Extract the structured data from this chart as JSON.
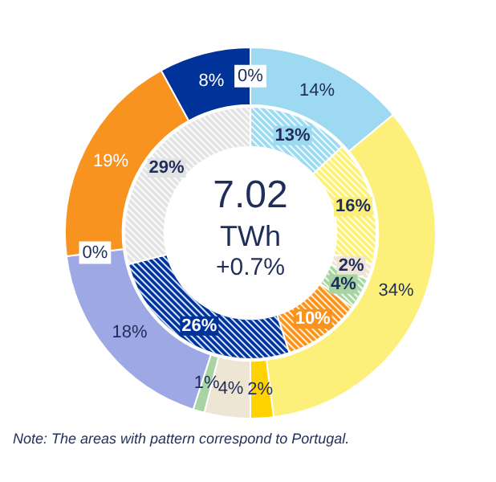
{
  "chart_data": [
    {
      "type": "donut",
      "categories": [
        null,
        null,
        null,
        null,
        null,
        null,
        null,
        null,
        null,
        null
      ],
      "values": [
        0,
        14,
        34,
        2,
        4,
        1,
        18,
        0,
        19,
        8
      ],
      "colors": [
        "#d9d9d9",
        "#9dd9f0",
        "#fdf07a",
        "#ffd200",
        "#efe5d5",
        "#a8d4a4",
        "#9ea8e4",
        "#9ea8e4",
        "#f7931e",
        "#003399"
      ],
      "value_labels": [
        "0%",
        "14%",
        "34%",
        "2%",
        "4%",
        "1%",
        "18%",
        "0%",
        "19%",
        "8%"
      ],
      "legend": false,
      "annotations": [
        "Note: The areas with pattern correspond to Portugal."
      ]
    },
    {
      "type": "donut",
      "categories": [
        null,
        null,
        null,
        null,
        null,
        null,
        null
      ],
      "values": [
        13,
        16,
        2,
        4,
        10,
        26,
        29
      ],
      "colors": [
        "#9dd9f0",
        "#fdf07a",
        "#efe5d5",
        "#a8d4a4",
        "#f7931e",
        "#003399",
        "#e3e3e3"
      ],
      "value_labels": [
        "13%",
        "16%",
        "2%",
        "4%",
        "10%",
        "26%",
        "29%"
      ],
      "legend": false,
      "annotations": [
        "7.02",
        "TWh",
        "+0.7%"
      ]
    }
  ]
}
